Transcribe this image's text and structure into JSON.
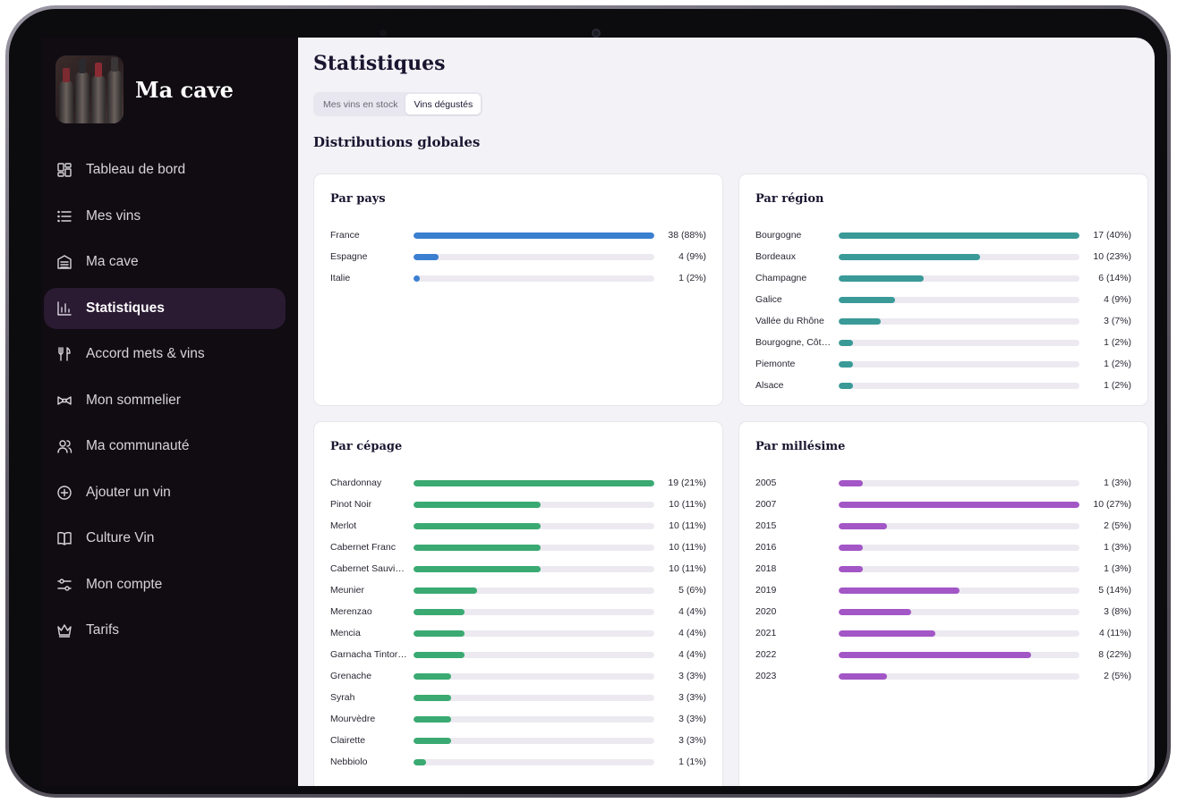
{
  "app": {
    "name": "Ma cave"
  },
  "sidebar": {
    "items": [
      {
        "label": "Tableau de bord",
        "icon": "dashboard-icon",
        "active": false
      },
      {
        "label": "Mes vins",
        "icon": "list-icon",
        "active": false
      },
      {
        "label": "Ma cave",
        "icon": "cellar-icon",
        "active": false
      },
      {
        "label": "Statistiques",
        "icon": "bar-chart-icon",
        "active": true
      },
      {
        "label": "Accord mets & vins",
        "icon": "utensils-icon",
        "active": false
      },
      {
        "label": "Mon sommelier",
        "icon": "bowtie-icon",
        "active": false
      },
      {
        "label": "Ma communauté",
        "icon": "users-icon",
        "active": false
      },
      {
        "label": "Ajouter un vin",
        "icon": "plus-circle-icon",
        "active": false
      },
      {
        "label": "Culture Vin",
        "icon": "book-icon",
        "active": false
      },
      {
        "label": "Mon compte",
        "icon": "settings-sliders-icon",
        "active": false
      },
      {
        "label": "Tarifs",
        "icon": "crown-icon",
        "active": false
      }
    ]
  },
  "main": {
    "title": "Statistiques",
    "segments": [
      {
        "label": "Mes vins en stock",
        "active": false
      },
      {
        "label": "Vins dégustés",
        "active": true
      }
    ],
    "section_title": "Distributions globales"
  },
  "colors": {
    "pays": "#3a7fd0",
    "region": "#3a9a98",
    "cepage": "#3aaa72",
    "millesime": "#a356c6"
  },
  "cards": [
    {
      "id": "pays",
      "title": "Par pays",
      "max": 38,
      "rows": [
        {
          "label": "France",
          "count": 38,
          "value": "38 (88%)"
        },
        {
          "label": "Espagne",
          "count": 4,
          "value": "4 (9%)"
        },
        {
          "label": "Italie",
          "count": 1,
          "value": "1 (2%)"
        }
      ]
    },
    {
      "id": "region",
      "title": "Par région",
      "max": 17,
      "rows": [
        {
          "label": "Bourgogne",
          "count": 17,
          "value": "17 (40%)"
        },
        {
          "label": "Bordeaux",
          "count": 10,
          "value": "10 (23%)"
        },
        {
          "label": "Champagne",
          "count": 6,
          "value": "6 (14%)"
        },
        {
          "label": "Galice",
          "count": 4,
          "value": "4 (9%)"
        },
        {
          "label": "Vallée du Rhône",
          "count": 3,
          "value": "3 (7%)"
        },
        {
          "label": "Bourgogne, Côte…",
          "count": 1,
          "value": "1 (2%)"
        },
        {
          "label": "Piemonte",
          "count": 1,
          "value": "1 (2%)"
        },
        {
          "label": "Alsace",
          "count": 1,
          "value": "1 (2%)"
        }
      ]
    },
    {
      "id": "cepage",
      "title": "Par cépage",
      "max": 19,
      "rows": [
        {
          "label": "Chardonnay",
          "count": 19,
          "value": "19 (21%)"
        },
        {
          "label": "Pinot Noir",
          "count": 10,
          "value": "10 (11%)"
        },
        {
          "label": "Merlot",
          "count": 10,
          "value": "10 (11%)"
        },
        {
          "label": "Cabernet Franc",
          "count": 10,
          "value": "10 (11%)"
        },
        {
          "label": "Cabernet Sauvig…",
          "count": 10,
          "value": "10 (11%)"
        },
        {
          "label": "Meunier",
          "count": 5,
          "value": "5 (6%)"
        },
        {
          "label": "Merenzao",
          "count": 4,
          "value": "4 (4%)"
        },
        {
          "label": "Mencia",
          "count": 4,
          "value": "4 (4%)"
        },
        {
          "label": "Garnacha Tintor…",
          "count": 4,
          "value": "4 (4%)"
        },
        {
          "label": "Grenache",
          "count": 3,
          "value": "3 (3%)"
        },
        {
          "label": "Syrah",
          "count": 3,
          "value": "3 (3%)"
        },
        {
          "label": "Mourvèdre",
          "count": 3,
          "value": "3 (3%)"
        },
        {
          "label": "Clairette",
          "count": 3,
          "value": "3 (3%)"
        },
        {
          "label": "Nebbiolo",
          "count": 1,
          "value": "1 (1%)"
        }
      ]
    },
    {
      "id": "millesime",
      "title": "Par millésime",
      "max": 10,
      "rows": [
        {
          "label": "2005",
          "count": 1,
          "value": "1 (3%)"
        },
        {
          "label": "2007",
          "count": 10,
          "value": "10 (27%)"
        },
        {
          "label": "2015",
          "count": 2,
          "value": "2 (5%)"
        },
        {
          "label": "2016",
          "count": 1,
          "value": "1 (3%)"
        },
        {
          "label": "2018",
          "count": 1,
          "value": "1 (3%)"
        },
        {
          "label": "2019",
          "count": 5,
          "value": "5 (14%)"
        },
        {
          "label": "2020",
          "count": 3,
          "value": "3 (8%)"
        },
        {
          "label": "2021",
          "count": 4,
          "value": "4 (11%)"
        },
        {
          "label": "2022",
          "count": 8,
          "value": "8 (22%)"
        },
        {
          "label": "2023",
          "count": 2,
          "value": "2 (5%)"
        }
      ]
    }
  ]
}
